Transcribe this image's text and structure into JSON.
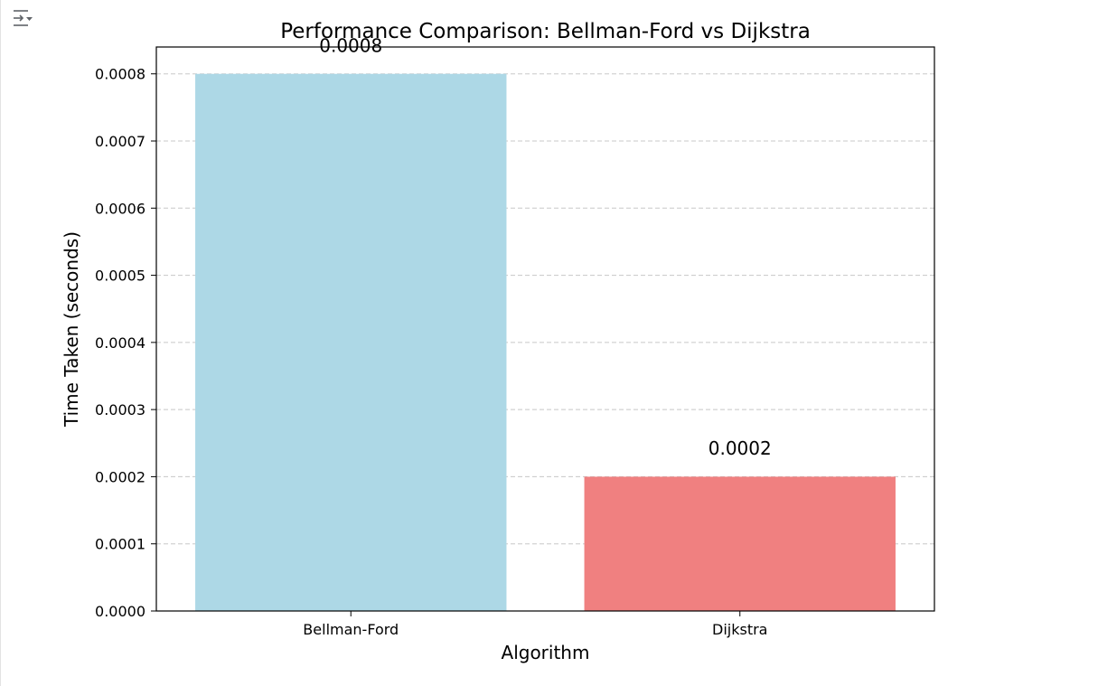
{
  "output_toggle": {
    "icon": "collapse-output-icon"
  },
  "chart_data": {
    "type": "bar",
    "title": "Performance Comparison: Bellman-Ford vs Dijkstra",
    "xlabel": "Algorithm",
    "ylabel": "Time Taken (seconds)",
    "categories": [
      "Bellman-Ford",
      "Dijkstra"
    ],
    "values": [
      0.0008,
      0.0002
    ],
    "data_labels": [
      "0.0008",
      "0.0002"
    ],
    "colors": [
      "#add8e6",
      "#f08080"
    ],
    "ylim": [
      0,
      0.00084
    ],
    "yticks": [
      0,
      0.0001,
      0.0002,
      0.0003,
      0.0004,
      0.0005,
      0.0006,
      0.0007,
      0.0008
    ],
    "ytick_labels": [
      "0.0000",
      "0.0001",
      "0.0002",
      "0.0003",
      "0.0004",
      "0.0005",
      "0.0006",
      "0.0007",
      "0.0008"
    ],
    "grid": "y-dashed",
    "grid_color": "#c8c8c8",
    "legend": "none"
  }
}
